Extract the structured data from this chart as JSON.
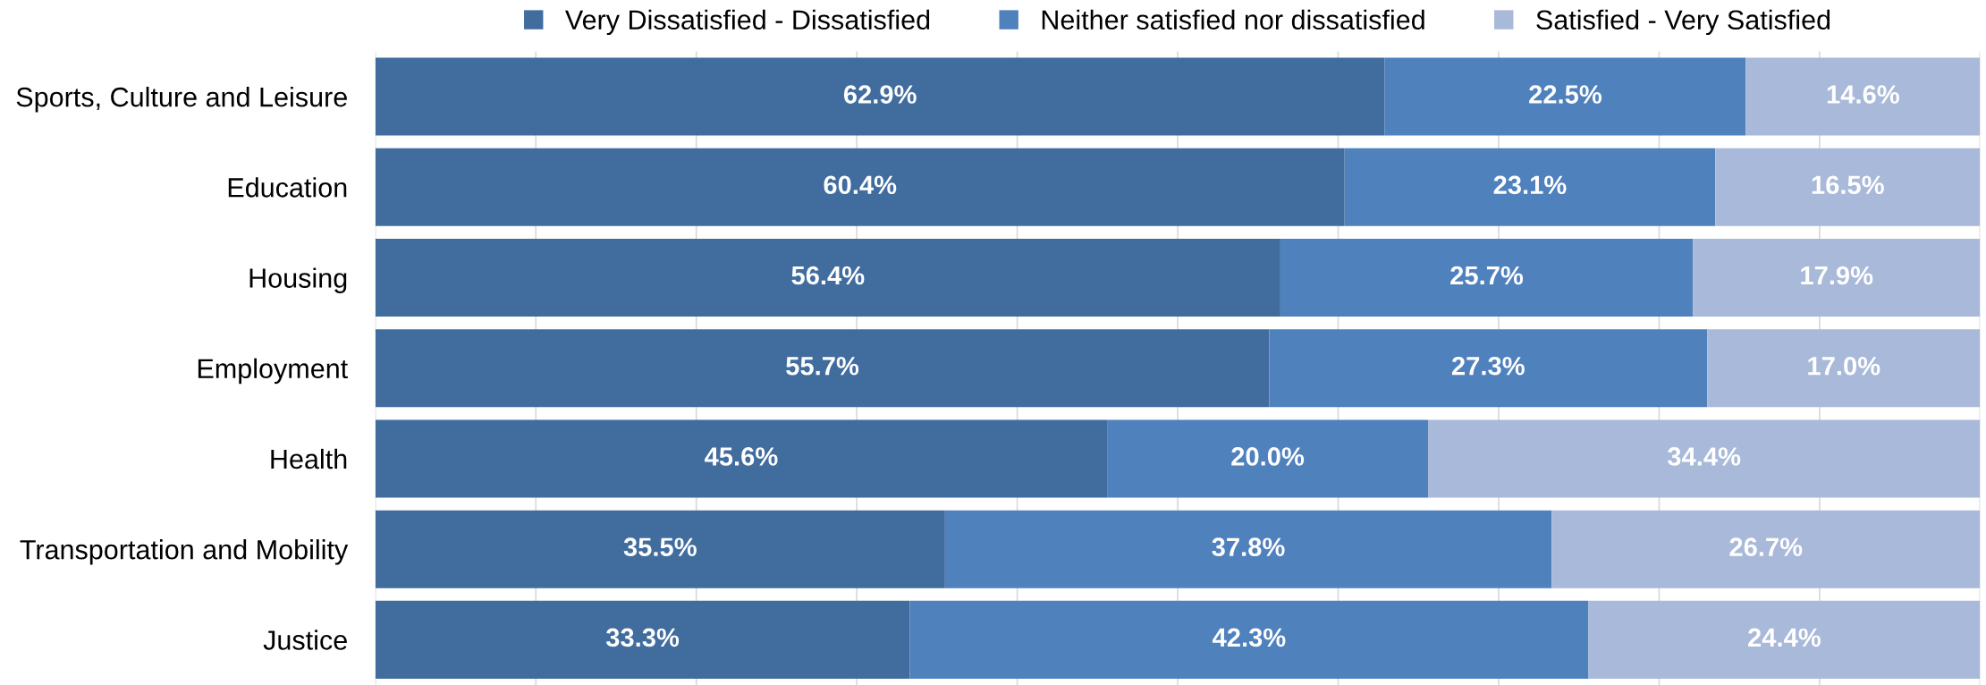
{
  "chart_data": {
    "type": "bar",
    "orientation": "horizontal",
    "stacked": true,
    "categories": [
      "Sports, Culture and Leisure",
      "Education",
      "Housing",
      "Employment",
      "Health",
      "Transportation and Mobility",
      "Justice"
    ],
    "series": [
      {
        "name": "Very Dissatisfied - Dissatisfied",
        "color": "#416c9e",
        "values": [
          62.9,
          60.4,
          56.4,
          55.7,
          45.6,
          35.5,
          33.3
        ],
        "value_labels": [
          "62.9%",
          "60.4%",
          "56.4%",
          "55.7%",
          "45.6%",
          "35.5%",
          "33.3%"
        ]
      },
      {
        "name": "Neither satisfied nor dissatisfied",
        "color": "#4f81bd",
        "values": [
          22.5,
          23.1,
          25.7,
          27.3,
          20.0,
          37.8,
          42.3
        ],
        "value_labels": [
          "22.5%",
          "23.1%",
          "25.7%",
          "27.3%",
          "20.0%",
          "37.8%",
          "42.3%"
        ]
      },
      {
        "name": "Satisfied - Very Satisfied",
        "color": "#a9b9d9",
        "values": [
          14.6,
          16.5,
          17.9,
          17.0,
          34.4,
          26.7,
          24.4
        ],
        "value_labels": [
          "14.6%",
          "16.5%",
          "17.9%",
          "17.0%",
          "34.4%",
          "26.7%",
          "24.4%"
        ]
      }
    ],
    "xlim": [
      0,
      100
    ],
    "xticks": [
      {
        "value": 0,
        "label": null
      },
      {
        "value": 10,
        "label": null
      },
      {
        "value": 20,
        "label": null
      },
      {
        "value": 30,
        "label": null
      },
      {
        "value": 40,
        "label": null
      },
      {
        "value": 50,
        "label": null
      },
      {
        "value": 60,
        "label": null
      },
      {
        "value": 70,
        "label": null
      },
      {
        "value": 80,
        "label": null
      },
      {
        "value": 90,
        "label": null
      },
      {
        "value": 100,
        "label": null
      }
    ],
    "tick_labels": "y",
    "grid": "x",
    "legend": "top"
  }
}
